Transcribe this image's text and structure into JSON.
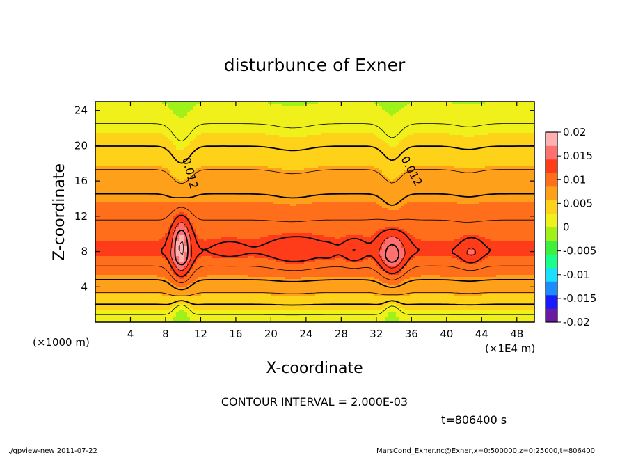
{
  "chart_data": {
    "type": "heatmap",
    "title": "disturbunce of Exner",
    "xlabel": "X-coordinate",
    "ylabel": "Z-coordinate",
    "x_unit_left": "(×1000 m)",
    "x_unit_right": "(×1E4 m)",
    "xlim": [
      0,
      50
    ],
    "ylim": [
      0,
      25
    ],
    "x_ticks": [
      4,
      8,
      12,
      16,
      20,
      24,
      28,
      32,
      36,
      40,
      44,
      48
    ],
    "x_tick_labels": [
      "4",
      "8",
      "12",
      "16",
      "20",
      "24",
      "28",
      "32",
      "36",
      "40",
      "44",
      "48"
    ],
    "y_ticks": [
      4,
      8,
      12,
      16,
      20,
      24
    ],
    "y_tick_labels": [
      "4",
      "8",
      "12",
      "16",
      "20",
      "24"
    ],
    "contour_interval_text": "CONTOUR INTERVAL = 2.000E-03",
    "time_text": "t=806400 s",
    "contour_labels": [
      "0.012",
      "0.012"
    ],
    "colorbar": {
      "ticks": [
        0.02,
        0.015,
        0.01,
        0.005,
        0,
        -0.005,
        -0.01,
        -0.015,
        -0.02
      ],
      "tick_labels": [
        "0.02",
        "0.015",
        "0.01",
        "0.005",
        "0",
        "-0.005",
        "-0.01",
        "-0.015",
        "-0.02"
      ],
      "range": [
        -0.02,
        0.02
      ],
      "colors": [
        "#6a1aa0",
        "#1a1aff",
        "#1a8cff",
        "#1ae0ff",
        "#1aff8c",
        "#3cf03c",
        "#a0f01a",
        "#f0f01a",
        "#ffd21a",
        "#ffa01a",
        "#ff6e1a",
        "#ff3c1a",
        "#ff7070",
        "#ffb0b0"
      ]
    },
    "grid": false,
    "legend_placement": "right"
  },
  "footer": {
    "left": "./gpview-new   2011-07-22",
    "right": "MarsCond_Exner.nc@Exner,x=0:500000,z=0:25000,t=806400"
  }
}
